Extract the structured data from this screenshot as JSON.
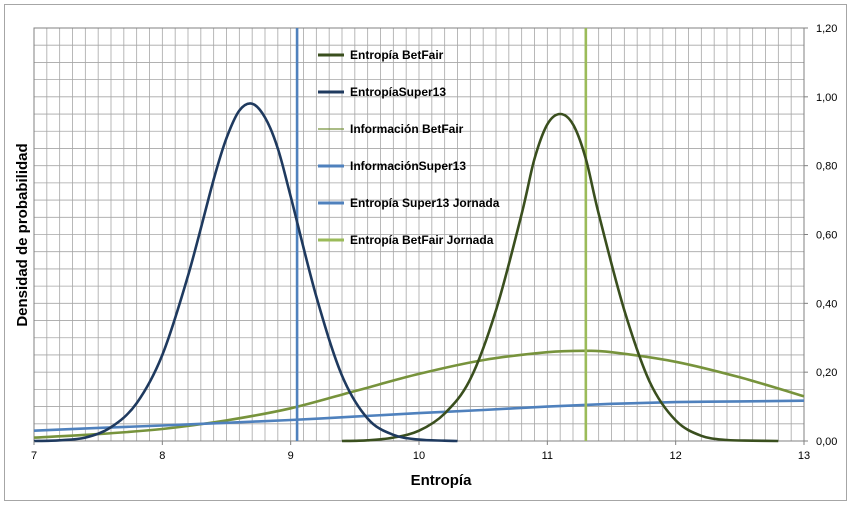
{
  "chart_data": {
    "type": "line",
    "title": "",
    "xlabel": "Entropía",
    "ylabel": "Densidad de probabilidad",
    "xlim": [
      7,
      13
    ],
    "ylim": [
      0,
      1.2
    ],
    "x_ticks": [
      "7",
      "8",
      "9",
      "10",
      "11",
      "12",
      "13"
    ],
    "x_tick_values": [
      7,
      8,
      9,
      10,
      11,
      12,
      13
    ],
    "y_ticks": [
      "0,00",
      "0,20",
      "0,40",
      "0,60",
      "0,80",
      "1,00",
      "1,20"
    ],
    "y_tick_values": [
      0,
      0.2,
      0.4,
      0.6,
      0.8,
      1.0,
      1.2
    ],
    "grid": true,
    "legend_position": "top-center",
    "series": [
      {
        "name": "Entropía BetFair",
        "color": "#3a4f1e",
        "kind": "curve",
        "x": [
          9.4,
          9.6,
          9.8,
          10.0,
          10.2,
          10.4,
          10.6,
          10.8,
          10.9,
          11.0,
          11.1,
          11.2,
          11.3,
          11.4,
          11.6,
          11.8,
          12.0,
          12.2,
          12.4,
          12.6,
          12.8
        ],
        "y": [
          0.0,
          0.002,
          0.01,
          0.03,
          0.08,
          0.18,
          0.38,
          0.66,
          0.82,
          0.92,
          0.95,
          0.92,
          0.82,
          0.66,
          0.38,
          0.17,
          0.06,
          0.015,
          0.003,
          0.001,
          0.0
        ]
      },
      {
        "name": "EntropíaSuper13",
        "color": "#1f3a5f",
        "kind": "curve",
        "x": [
          7.0,
          7.2,
          7.4,
          7.6,
          7.8,
          8.0,
          8.2,
          8.4,
          8.5,
          8.6,
          8.7,
          8.8,
          8.9,
          9.0,
          9.2,
          9.4,
          9.6,
          9.8,
          10.0,
          10.2,
          10.3
        ],
        "y": [
          0.0,
          0.002,
          0.01,
          0.04,
          0.11,
          0.25,
          0.48,
          0.76,
          0.88,
          0.96,
          0.98,
          0.94,
          0.85,
          0.71,
          0.42,
          0.19,
          0.065,
          0.018,
          0.004,
          0.001,
          0.0
        ]
      },
      {
        "name": "Información BetFair",
        "color": "#77933c",
        "kind": "curve",
        "x": [
          7.0,
          7.5,
          8.0,
          8.5,
          9.0,
          9.5,
          10.0,
          10.5,
          11.0,
          11.3,
          11.5,
          12.0,
          12.5,
          13.0
        ],
        "y": [
          0.01,
          0.02,
          0.035,
          0.06,
          0.095,
          0.145,
          0.195,
          0.235,
          0.258,
          0.262,
          0.258,
          0.23,
          0.185,
          0.13
        ]
      },
      {
        "name": "InformaciónSuper13",
        "color": "#4f81bd",
        "kind": "curve",
        "x": [
          7.0,
          7.5,
          8.0,
          8.5,
          9.0,
          9.5,
          10.0,
          10.5,
          11.0,
          11.5,
          12.0,
          12.5,
          13.0
        ],
        "y": [
          0.03,
          0.038,
          0.045,
          0.053,
          0.061,
          0.071,
          0.081,
          0.09,
          0.1,
          0.108,
          0.113,
          0.115,
          0.117
        ]
      },
      {
        "name": "Entropía Super13 Jornada",
        "color": "#4f81bd",
        "kind": "vline",
        "x": [
          9.05,
          9.05
        ],
        "y": [
          0,
          1.2
        ]
      },
      {
        "name": "Entropía BetFair Jornada",
        "color": "#9bbb59",
        "kind": "vline",
        "x": [
          11.3,
          11.3
        ],
        "y": [
          0,
          1.2
        ]
      }
    ]
  }
}
